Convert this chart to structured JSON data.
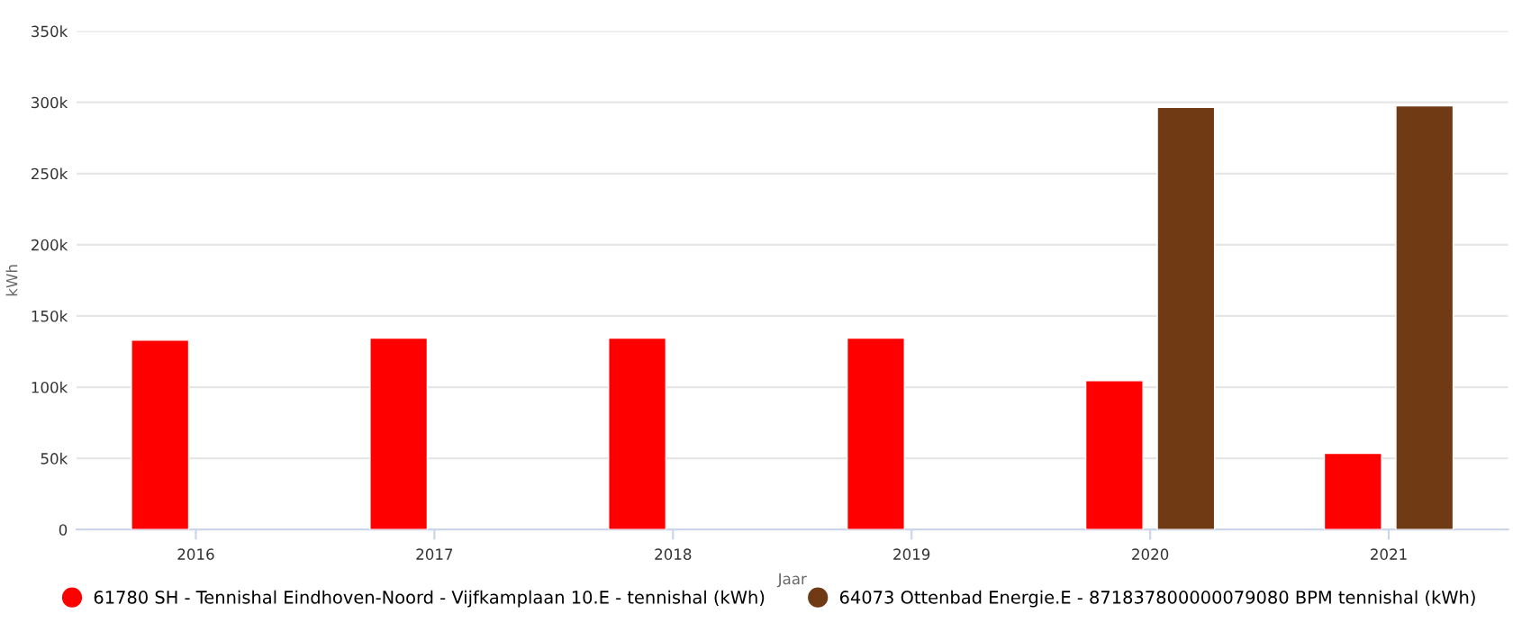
{
  "chart_data": {
    "type": "bar",
    "xlabel": "Jaar",
    "ylabel": "kWh",
    "categories": [
      "2016",
      "2017",
      "2018",
      "2019",
      "2020",
      "2021"
    ],
    "series": [
      {
        "name": "61780 SH - Tennishal Eindhoven-Noord - Vijfkamplaan 10.E - tennishal (kWh)",
        "color": "#ff0000",
        "values": [
          133000,
          134500,
          134500,
          134500,
          104500,
          53500
        ]
      },
      {
        "name": "64073 Ottenbad Energie.E - 871837800000079080 BPM tennishal (kWh)",
        "color": "#703a14",
        "values": [
          null,
          null,
          null,
          null,
          296500,
          297500
        ]
      }
    ],
    "ylim": [
      0,
      350000
    ],
    "yticks": [
      {
        "value": 0,
        "label": "0"
      },
      {
        "value": 50000,
        "label": "50k"
      },
      {
        "value": 100000,
        "label": "100k"
      },
      {
        "value": 150000,
        "label": "150k"
      },
      {
        "value": 200000,
        "label": "200k"
      },
      {
        "value": 250000,
        "label": "250k"
      },
      {
        "value": 300000,
        "label": "300k"
      },
      {
        "value": 350000,
        "label": "350k"
      }
    ],
    "grid": "y",
    "legend": "bottom"
  }
}
